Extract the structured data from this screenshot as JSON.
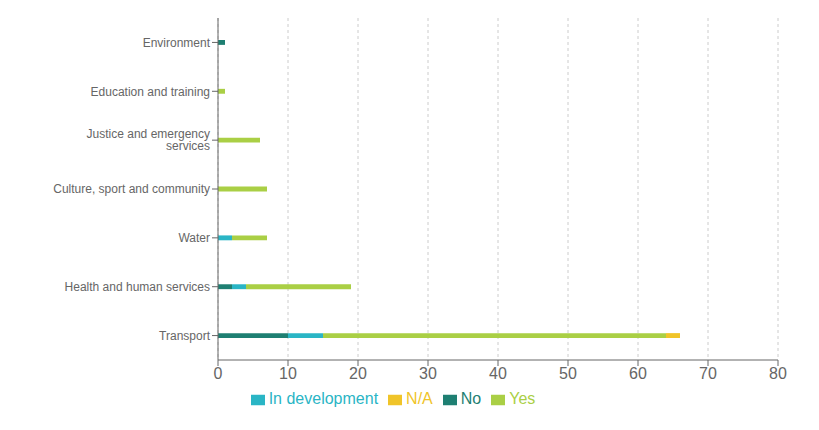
{
  "chart_data": {
    "type": "bar",
    "orientation": "horizontal",
    "stacked": true,
    "grid": true,
    "legend": "bottom",
    "categories": [
      "Transport",
      "Health and human services",
      "Water",
      "Culture, sport and community",
      "Justice and emergency services",
      "Education and training",
      "Environment"
    ],
    "series": [
      {
        "name": "No",
        "color": "#1e7f72",
        "values": [
          10,
          2,
          0,
          0,
          0,
          0,
          1
        ]
      },
      {
        "name": "In development",
        "color": "#2ab5c5",
        "values": [
          5,
          2,
          2,
          0,
          0,
          0,
          0
        ]
      },
      {
        "name": "Yes",
        "color": "#aacf45",
        "values": [
          49,
          15,
          5,
          7,
          6,
          1,
          0
        ]
      },
      {
        "name": "N/A",
        "color": "#f0c429",
        "values": [
          2,
          0,
          0,
          0,
          0,
          0,
          0
        ]
      }
    ],
    "xlim": [
      0,
      80
    ],
    "xticks": [
      0,
      10,
      20,
      30,
      40,
      50,
      60,
      70,
      80
    ]
  }
}
